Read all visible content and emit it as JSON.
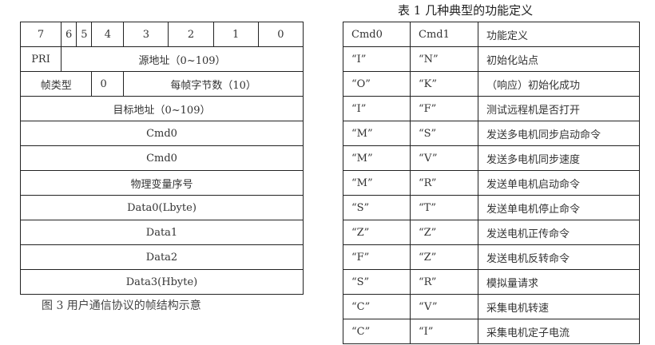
{
  "frame_table": {
    "bits": [
      "7",
      "6",
      "5",
      "4",
      "3",
      "2",
      "1",
      "0"
    ],
    "pri": "PRI",
    "source": "源地址（0~109）",
    "frame_type": "帧类型",
    "zero": "0",
    "bytes_per_frame": "每帧字节数（10）",
    "target": "目标地址（0~109）",
    "rows": [
      "Cmd0",
      "Cmd0",
      "物理变量序号",
      "Data0(Lbyte)",
      "Data1",
      "Data2",
      "Data3(Hbyte)"
    ]
  },
  "caption": "图 3  用户通信协议的帧结构示意",
  "func_table": {
    "title": "表 1  几种典型的功能定义",
    "headers": [
      "Cmd0",
      "Cmd1",
      "功能定义"
    ],
    "rows": [
      [
        "“I”",
        "“N”",
        "初始化站点"
      ],
      [
        "“O”",
        "“K”",
        "（响应）初始化成功"
      ],
      [
        "“I”",
        "“F”",
        "测试远程机是否打开"
      ],
      [
        "“M”",
        "“S”",
        "发送多电机同步启动命令"
      ],
      [
        "“M”",
        "“V”",
        "发送多电机同步速度"
      ],
      [
        "“M”",
        "“R”",
        "发送单电机启动命令"
      ],
      [
        "“S”",
        "“T”",
        "发送单电机停止命令"
      ],
      [
        "“Z”",
        "“Z”",
        "发送电机正传命令"
      ],
      [
        "“F”",
        "“Z”",
        "发送电机反转命令"
      ],
      [
        "“S”",
        "“R”",
        "模拟量请求"
      ],
      [
        "“C”",
        "“V”",
        "采集电机转速"
      ],
      [
        "“C”",
        "“I”",
        "采集电机定子电流"
      ]
    ]
  }
}
